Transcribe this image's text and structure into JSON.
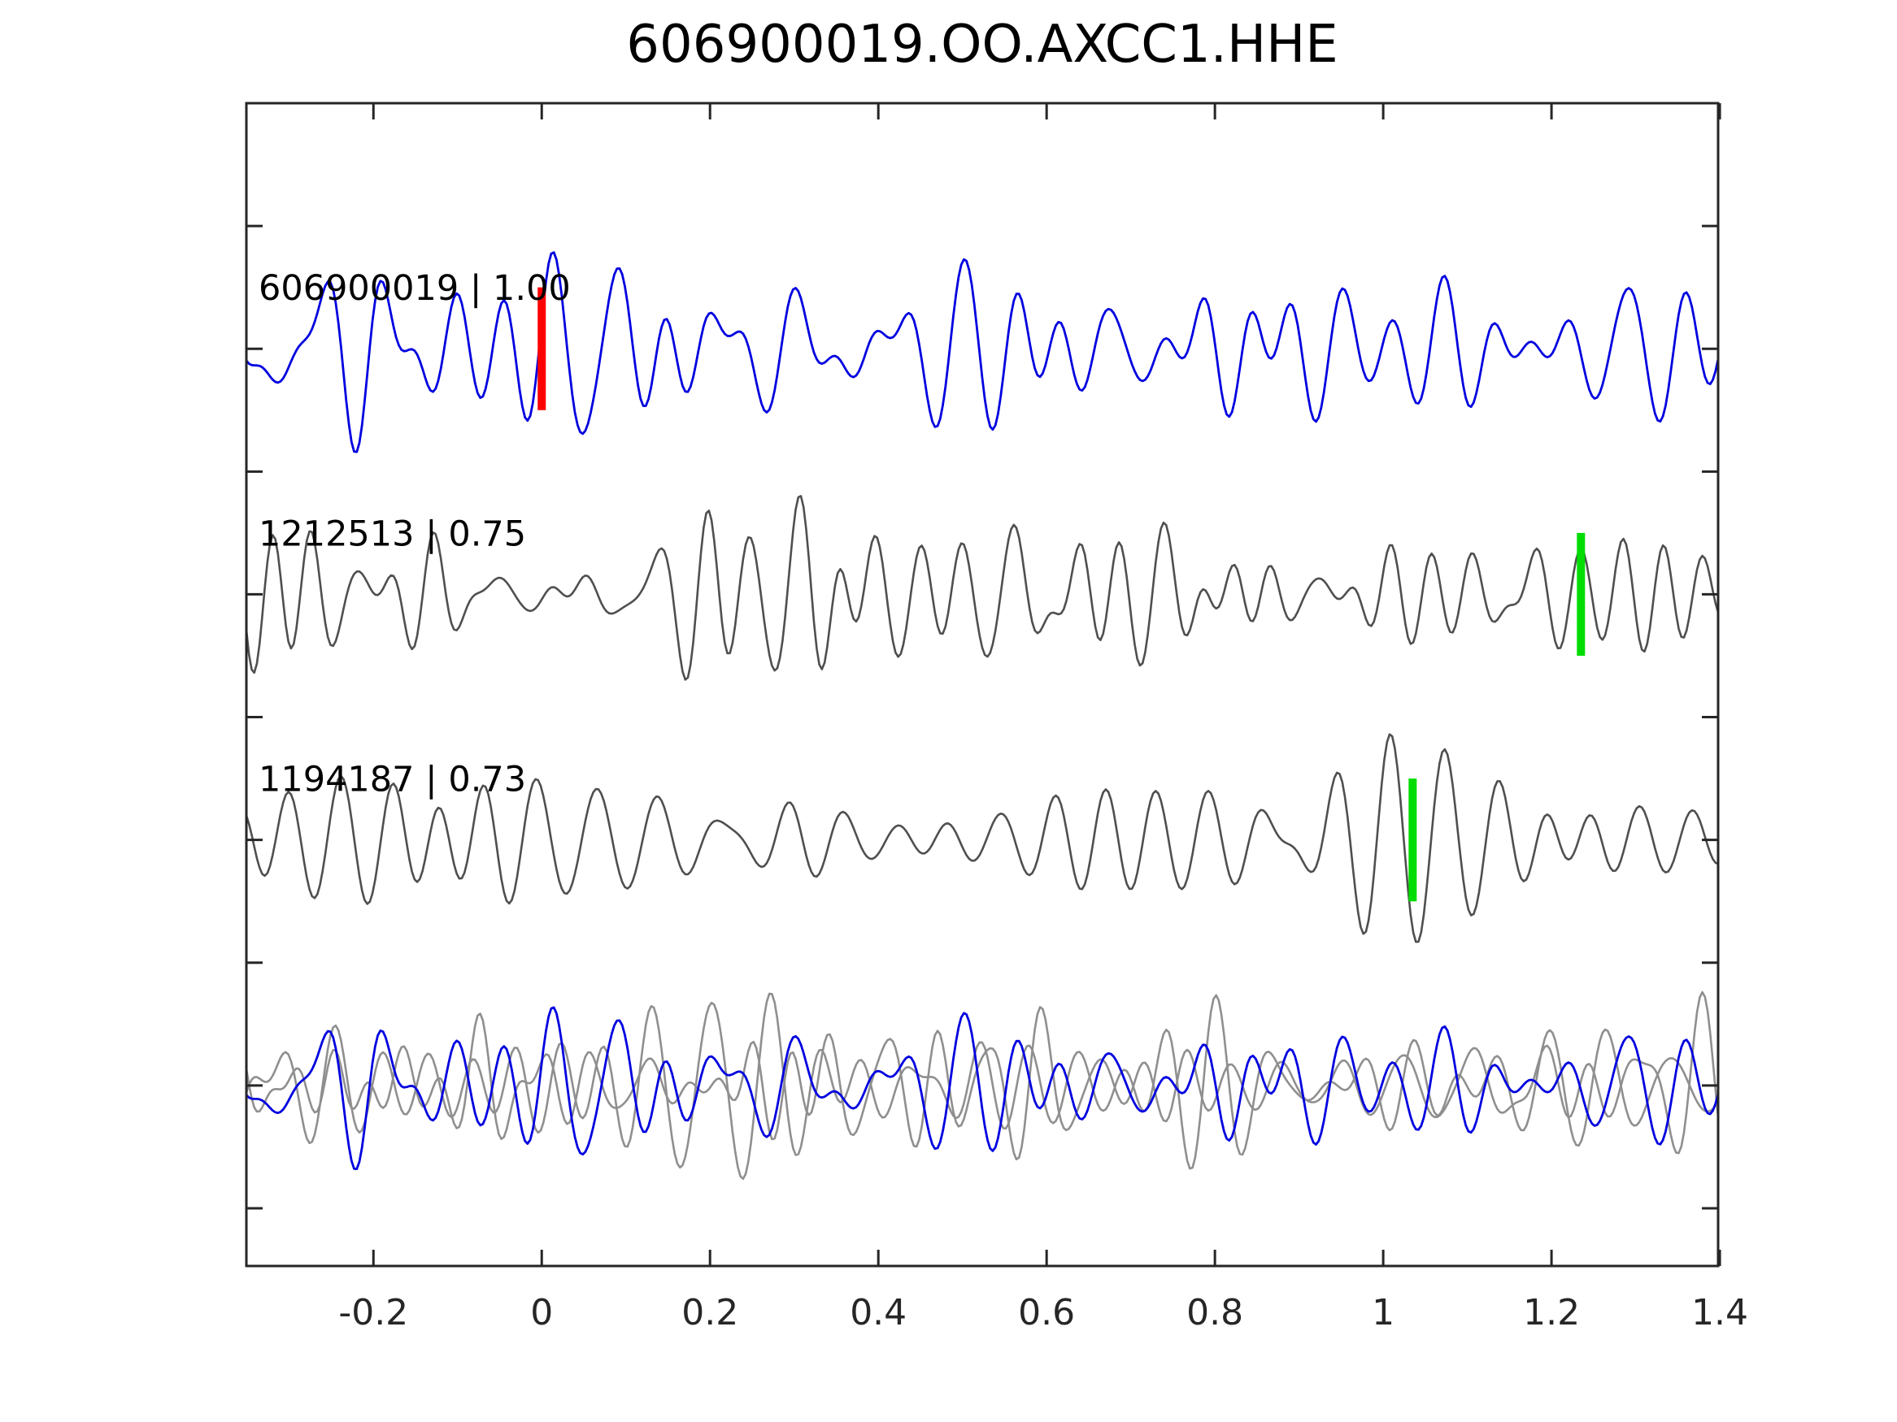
{
  "title": "606900019.OO.AXCC1.HHE",
  "chart_data": {
    "type": "line",
    "title": "606900019.OO.AXCC1.HHE",
    "subtitle": "",
    "xlabel": "",
    "ylabel": "",
    "grid": false,
    "legend": "none",
    "ticks_direction": "in",
    "axis_color": "#262626",
    "background_color": "#ffffff",
    "xlim": [
      -0.351,
      1.398
    ],
    "xticks": [
      -0.2,
      0,
      0.2,
      0.4,
      0.6,
      0.8,
      1,
      1.2,
      1.4
    ],
    "xtick_labels": [
      "-0.2",
      "0",
      "0.2",
      "0.4",
      "0.6",
      "0.8",
      "1",
      "1.2",
      "1.4"
    ],
    "ylim_rows": [
      -1.0,
      3.735
    ],
    "yticks": [
      -0.5,
      0,
      0.5,
      1,
      1.5,
      2,
      2.5,
      3,
      3.5
    ],
    "ytick_labels": [
      "",
      "",
      "",
      "",
      "",
      "",
      "",
      "",
      ""
    ],
    "rows": [
      {
        "name": "reference-trace",
        "center": 0,
        "label": "606900019 | 1.00",
        "event_id": "606900019",
        "correlation": "1.00",
        "pick": {
          "time": 0.0,
          "color": "#ff0000",
          "half_height": 0.25,
          "width": 10
        },
        "series": [
          {
            "color": "#0000e0",
            "width": 2.8,
            "amplitude": 0.42,
            "seed": 101,
            "freq_band": [
              8,
              24
            ],
            "freq_center": 14,
            "freq_sigma": 5
          }
        ]
      },
      {
        "name": "match-trace-1",
        "center": 1,
        "label": "1212513 | 0.75",
        "event_id": "1212513",
        "correlation": "0.75",
        "pick": {
          "time": 1.235,
          "color": "#00dd00",
          "half_height": 0.25,
          "width": 10
        },
        "series": [
          {
            "color": "#4f4f4f",
            "width": 2.6,
            "amplitude": 0.4,
            "seed": 202,
            "freq_band": [
              9,
              28
            ],
            "freq_center": 17,
            "freq_sigma": 6
          }
        ]
      },
      {
        "name": "match-trace-2",
        "center": 2,
        "label": "1194187 | 0.73",
        "event_id": "1194187",
        "correlation": "0.73",
        "pick": {
          "time": 1.035,
          "color": "#00dd00",
          "half_height": 0.25,
          "width": 10
        },
        "series": [
          {
            "color": "#4f4f4f",
            "width": 2.6,
            "amplitude": 0.43,
            "seed": 303,
            "freq_band": [
              11,
              22
            ],
            "freq_center": 16,
            "freq_sigma": 3
          }
        ]
      },
      {
        "name": "overlay-trace",
        "center": 3,
        "label": "",
        "event_id": "",
        "correlation": "",
        "pick": null,
        "series": [
          {
            "color": "#8f8f8f",
            "width": 2.6,
            "amplitude": 0.38,
            "seed": 404,
            "freq_band": [
              9,
              28
            ],
            "freq_center": 17,
            "freq_sigma": 6
          },
          {
            "color": "#8f8f8f",
            "width": 2.6,
            "amplitude": 0.38,
            "seed": 505,
            "freq_band": [
              11,
              22
            ],
            "freq_center": 16,
            "freq_sigma": 3
          },
          {
            "color": "#0000e0",
            "width": 2.8,
            "amplitude": 0.34,
            "seed": 101,
            "freq_band": [
              8,
              24
            ],
            "freq_center": 14,
            "freq_sigma": 5
          }
        ]
      }
    ]
  }
}
